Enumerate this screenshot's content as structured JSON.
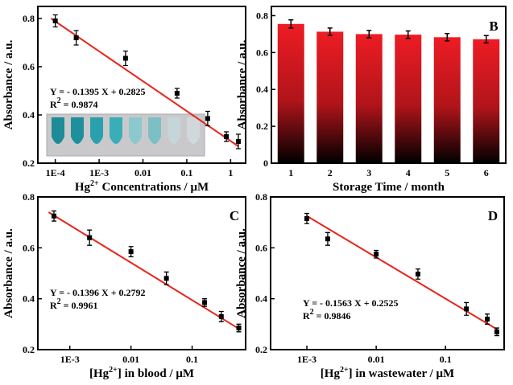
{
  "chart_data": [
    {
      "type": "scatter",
      "log_x": true,
      "xlabel": [
        "Hg",
        "2+",
        " Concentrations / μM"
      ],
      "ylabel": "Absorbance / a.u.",
      "xlim": [
        4e-05,
        2.2
      ],
      "xticks": [
        {
          "value": 0.0001,
          "label": "1E-4"
        },
        {
          "value": 0.001,
          "label": "1E-3"
        },
        0.01,
        0.1,
        1
      ],
      "ylim": [
        0.2,
        0.85
      ],
      "yticks": [
        0.2,
        0.4,
        0.6,
        0.8
      ],
      "series": [
        {
          "color": "#000000",
          "x": [
            0.0001,
            0.0003,
            0.004,
            0.06,
            0.3,
            0.8,
            1.5
          ],
          "values": [
            0.79,
            0.72,
            0.635,
            0.49,
            0.385,
            0.31,
            0.29
          ],
          "errors": [
            0.025,
            0.03,
            0.03,
            0.02,
            0.03,
            0.02,
            0.03
          ]
        }
      ],
      "fit": {
        "color": "#e8241c",
        "x": [
          8e-05,
          1.5
        ],
        "values": [
          0.8,
          0.27
        ]
      },
      "equation": "Y = - 0.1395 X + 0.2825",
      "r2": [
        "R",
        "2",
        " = 0.9874"
      ]
    },
    {
      "type": "bar",
      "panel_label": "B",
      "xlabel": [
        "Storage Time / month"
      ],
      "ylabel": "Absorbance / a.u.",
      "categories": [
        "1",
        "2",
        "3",
        "4",
        "5",
        "6"
      ],
      "ylim": [
        0,
        0.85
      ],
      "yticks": [
        0.0,
        {
          "value": 0.2,
          "label": "0.2"
        },
        {
          "value": 0.4,
          "label": "0.4"
        },
        {
          "value": 0.6,
          "label": "0.6"
        },
        {
          "value": 0.8,
          "label": "0.8"
        }
      ],
      "series": [
        {
          "color": "#ee1c24",
          "values": [
            0.755,
            0.713,
            0.7,
            0.697,
            0.683,
            0.672
          ],
          "errors": [
            0.022,
            0.02,
            0.02,
            0.02,
            0.02,
            0.02
          ]
        }
      ]
    },
    {
      "type": "scatter",
      "log_x": true,
      "panel_label": "C",
      "xlabel": [
        "[Hg",
        "2+",
        "] in  blood / μM"
      ],
      "ylabel": "Absorbance / a.u.",
      "xlim": [
        0.0003,
        0.75
      ],
      "xticks": [
        {
          "value": 0.001,
          "label": "1E-3"
        },
        0.01,
        0.1
      ],
      "ylim": [
        0.2,
        0.8
      ],
      "yticks": [
        0.2,
        0.4,
        0.6,
        0.8
      ],
      "series": [
        {
          "color": "#000000",
          "x": [
            0.00055,
            0.0021,
            0.01,
            0.038,
            0.16,
            0.3,
            0.58
          ],
          "values": [
            0.725,
            0.64,
            0.585,
            0.48,
            0.385,
            0.33,
            0.285
          ],
          "errors": [
            0.02,
            0.03,
            0.02,
            0.025,
            0.015,
            0.02,
            0.015
          ]
        }
      ],
      "fit": {
        "color": "#e8241c",
        "x": [
          0.00045,
          0.6
        ],
        "values": [
          0.74,
          0.28
        ]
      },
      "equation": "Y = - 0.1396 X + 0.2792",
      "r2": [
        "R",
        "2",
        " = 0.9961"
      ]
    },
    {
      "type": "scatter",
      "log_x": true,
      "panel_label": "D",
      "xlabel": [
        "[Hg",
        "2+",
        "] in wastewater / μM"
      ],
      "ylabel": "Absorbance / a.u.",
      "xlim": [
        0.0003,
        0.7
      ],
      "xticks": [
        {
          "value": 0.001,
          "label": "1E-3"
        },
        0.01,
        0.1
      ],
      "ylim": [
        0.2,
        0.8
      ],
      "yticks": [
        0.2,
        0.4,
        0.6,
        0.8
      ],
      "series": [
        {
          "color": "#000000",
          "x": [
            0.001,
            0.002,
            0.01,
            0.04,
            0.2,
            0.4,
            0.55
          ],
          "values": [
            0.715,
            0.635,
            0.575,
            0.497,
            0.36,
            0.32,
            0.27
          ],
          "errors": [
            0.02,
            0.025,
            0.015,
            0.02,
            0.025,
            0.02,
            0.015
          ]
        }
      ],
      "fit": {
        "color": "#e8241c",
        "x": [
          0.001,
          0.55
        ],
        "values": [
          0.725,
          0.28
        ]
      },
      "equation": "Y = - 0.1563 X + 0.2525",
      "r2": [
        "R",
        "2",
        " = 0.9846"
      ]
    }
  ]
}
